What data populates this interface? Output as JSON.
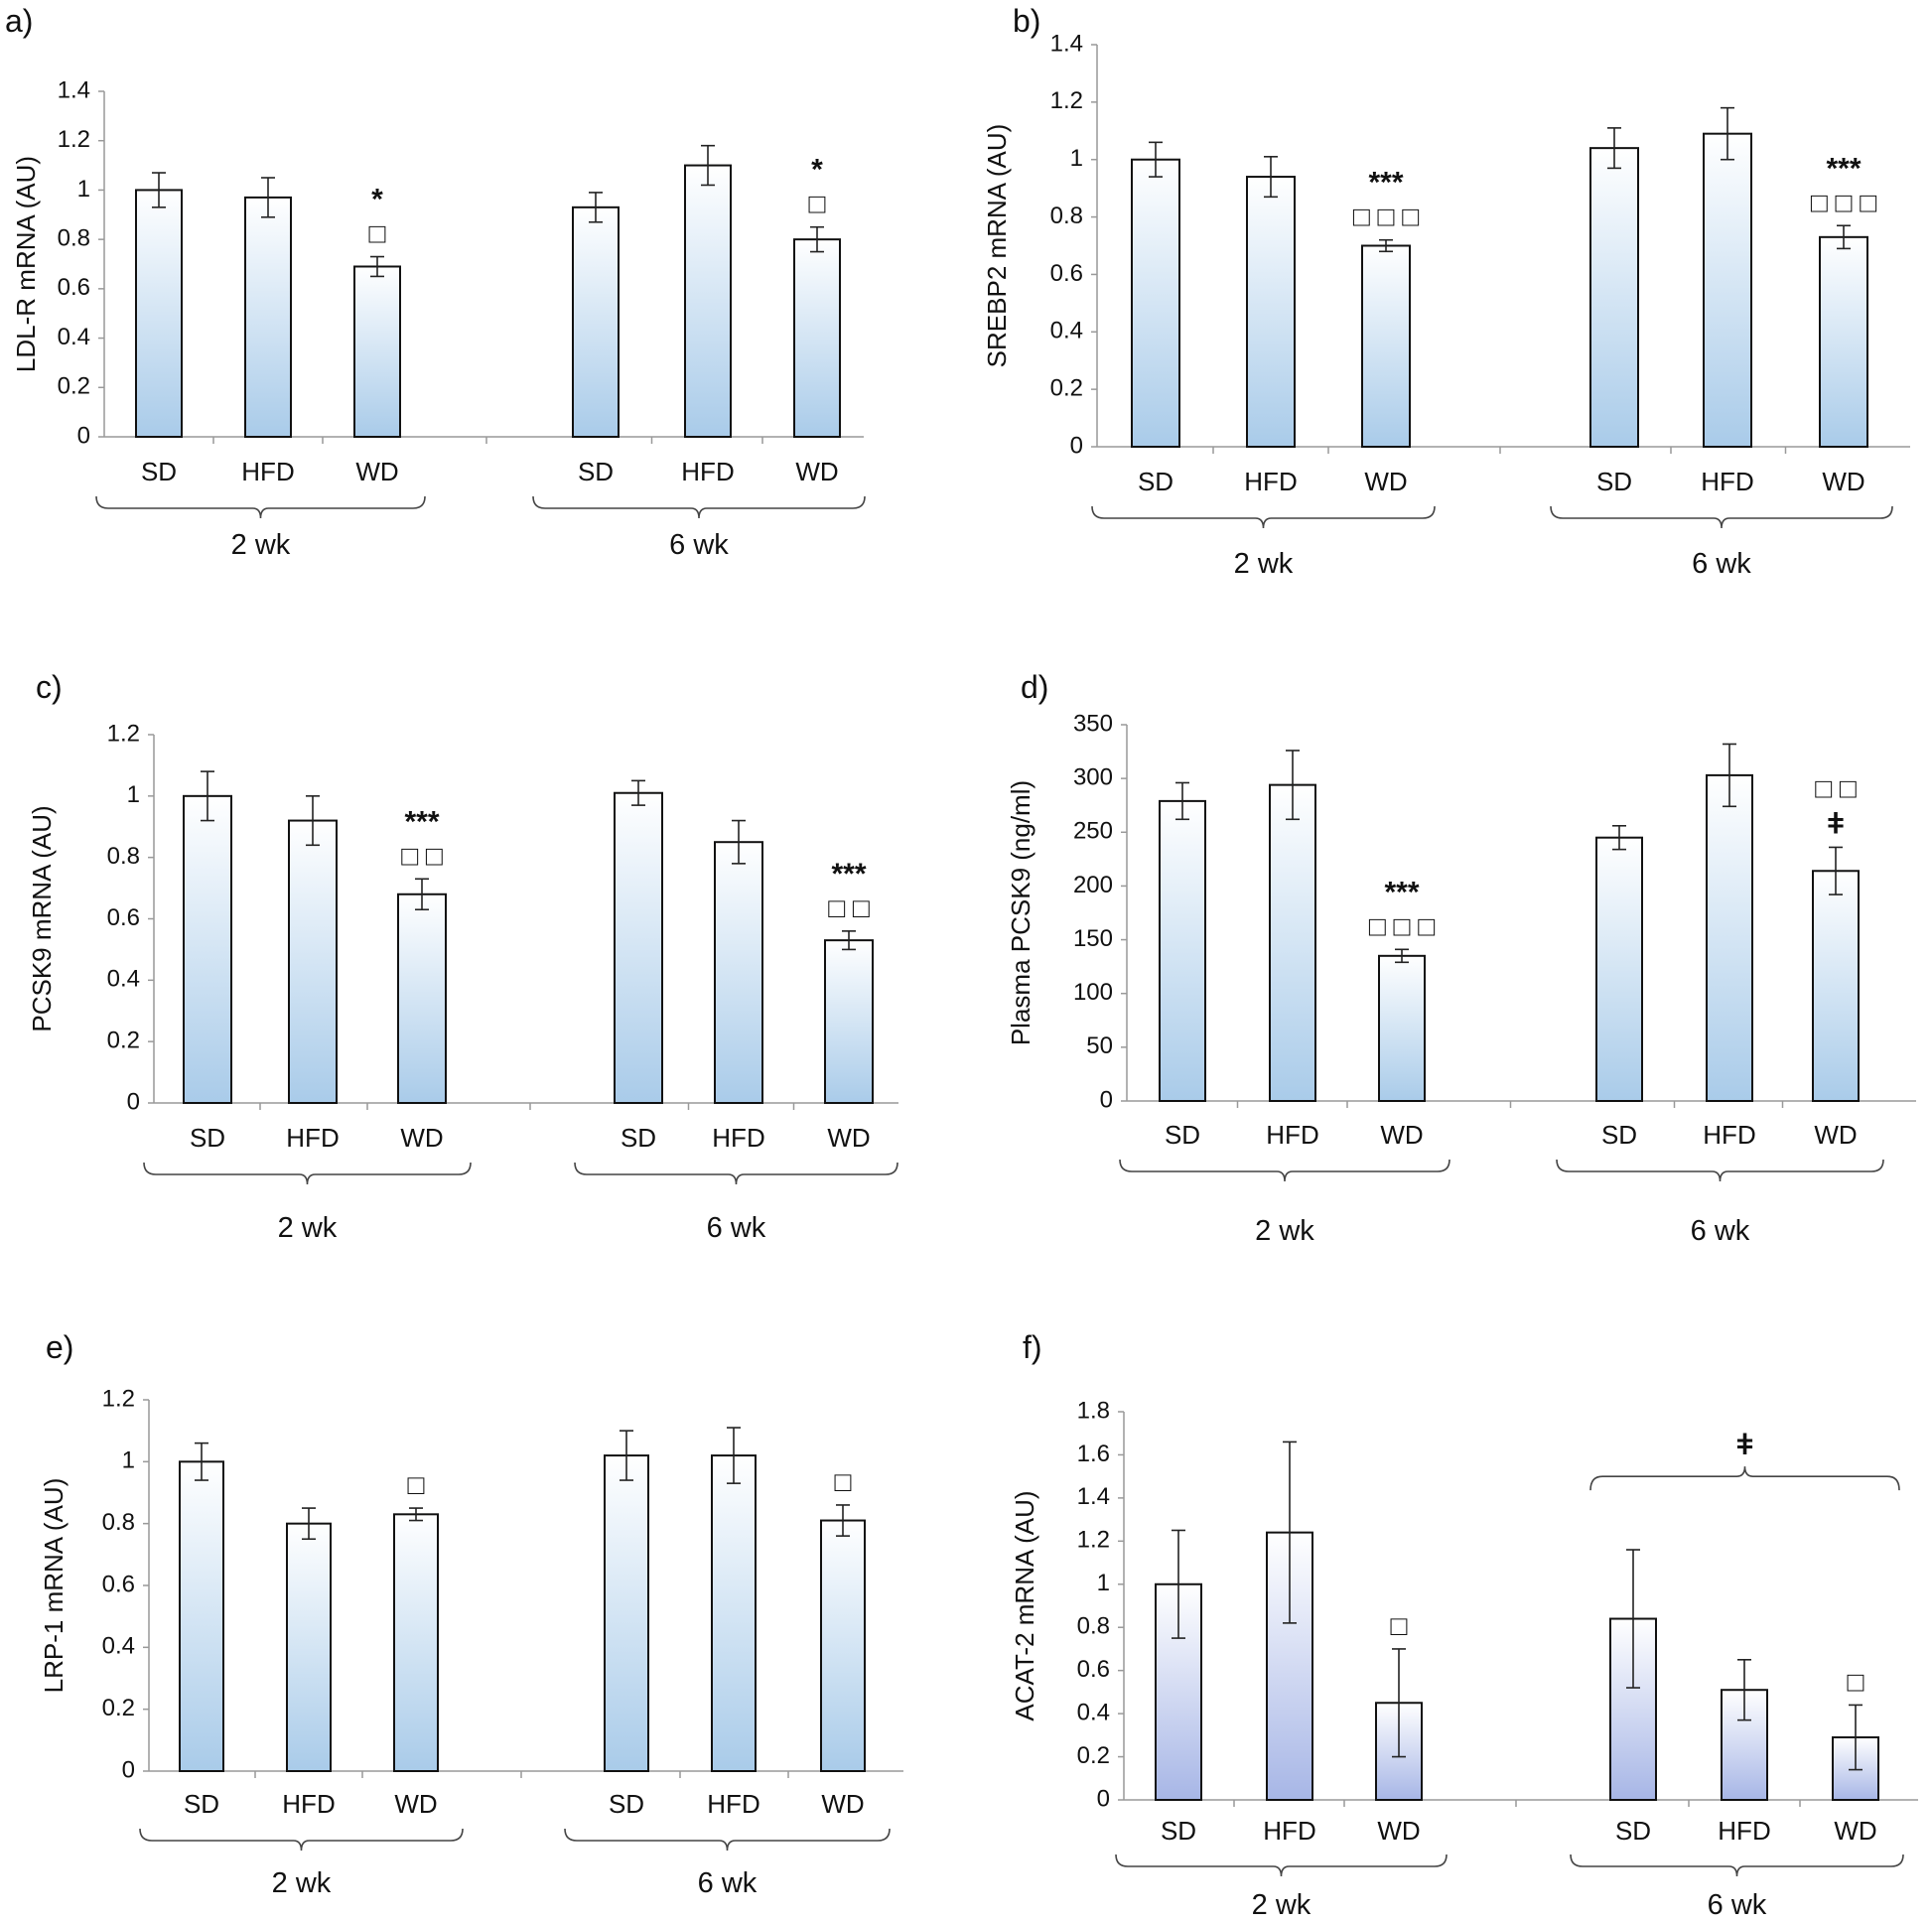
{
  "chart_data": [
    {
      "panel": "a)",
      "type": "bar",
      "ylabel": "LDL-R mRNA (AU)",
      "ylim": [
        0,
        1.4
      ],
      "yticks": [
        "0",
        "0.2",
        "0.4",
        "0.6",
        "0.8",
        "1",
        "1.2",
        "1.4"
      ],
      "categories": [
        "SD",
        "HFD",
        "WD",
        "SD",
        "HFD",
        "WD"
      ],
      "groups": [
        "2 wk",
        "6 wk"
      ],
      "values": [
        1.0,
        0.97,
        0.69,
        0.93,
        1.1,
        0.8
      ],
      "errors": [
        0.07,
        0.08,
        0.04,
        0.06,
        0.08,
        0.05
      ],
      "stars": [
        "",
        "",
        "*",
        "",
        "",
        "*"
      ],
      "squares": [
        "",
        "",
        "□",
        "",
        "",
        "□"
      ],
      "crosses": [
        "",
        "",
        "",
        "",
        "",
        ""
      ],
      "bracket": null
    },
    {
      "panel": "b)",
      "type": "bar",
      "ylabel": "SREBP2 mRNA (AU)",
      "ylim": [
        0,
        1.4
      ],
      "yticks": [
        "0",
        "0.2",
        "0.4",
        "0.6",
        "0.8",
        "1",
        "1.2",
        "1.4"
      ],
      "categories": [
        "SD",
        "HFD",
        "WD",
        "SD",
        "HFD",
        "WD"
      ],
      "groups": [
        "2 wk",
        "6 wk"
      ],
      "values": [
        1.0,
        0.94,
        0.7,
        1.04,
        1.09,
        0.73
      ],
      "errors": [
        0.06,
        0.07,
        0.02,
        0.07,
        0.09,
        0.04
      ],
      "stars": [
        "",
        "",
        "***",
        "",
        "",
        "***"
      ],
      "squares": [
        "",
        "",
        "□ □ □",
        "",
        "",
        "□ □ □"
      ],
      "crosses": [
        "",
        "",
        "",
        "",
        "",
        ""
      ],
      "bracket": null
    },
    {
      "panel": "c)",
      "type": "bar",
      "ylabel": "PCSK9 mRNA (AU)",
      "ylim": [
        0,
        1.2
      ],
      "yticks": [
        "0",
        "0.2",
        "0.4",
        "0.6",
        "0.8",
        "1",
        "1.2"
      ],
      "categories": [
        "SD",
        "HFD",
        "WD",
        "SD",
        "HFD",
        "WD"
      ],
      "groups": [
        "2 wk",
        "6 wk"
      ],
      "values": [
        1.0,
        0.92,
        0.68,
        1.01,
        0.85,
        0.53
      ],
      "errors": [
        0.08,
        0.08,
        0.05,
        0.04,
        0.07,
        0.03
      ],
      "stars": [
        "",
        "",
        "***",
        "",
        "",
        "***"
      ],
      "squares": [
        "",
        "",
        "□ □",
        "",
        "",
        "□ □"
      ],
      "crosses": [
        "",
        "",
        "",
        "",
        "",
        ""
      ],
      "bracket": null
    },
    {
      "panel": "d)",
      "type": "bar",
      "ylabel": "Plasma PCSK9 (ng/ml)",
      "ylim": [
        0,
        350
      ],
      "yticks": [
        "0",
        "50",
        "100",
        "150",
        "200",
        "250",
        "300",
        "350"
      ],
      "categories": [
        "SD",
        "HFD",
        "WD",
        "SD",
        "HFD",
        "WD"
      ],
      "groups": [
        "2 wk",
        "6 wk"
      ],
      "values": [
        279,
        294,
        135,
        245,
        303,
        214
      ],
      "errors": [
        17,
        32,
        6,
        11,
        29,
        22
      ],
      "stars": [
        "",
        "",
        "***",
        "",
        "",
        ""
      ],
      "squares": [
        "",
        "",
        "□ □ □",
        "",
        "",
        "□ □"
      ],
      "crosses": [
        "",
        "",
        "",
        "",
        "",
        "ǂ"
      ],
      "bracket": null
    },
    {
      "panel": "e)",
      "type": "bar",
      "ylabel": "LRP-1 mRNA (AU)",
      "ylim": [
        0,
        1.2
      ],
      "yticks": [
        "0",
        "0.2",
        "0.4",
        "0.6",
        "0.8",
        "1",
        "1.2"
      ],
      "categories": [
        "SD",
        "HFD",
        "WD",
        "SD",
        "HFD",
        "WD"
      ],
      "groups": [
        "2 wk",
        "6 wk"
      ],
      "values": [
        1.0,
        0.8,
        0.83,
        1.02,
        1.02,
        0.81
      ],
      "errors": [
        0.06,
        0.05,
        0.02,
        0.08,
        0.09,
        0.05
      ],
      "stars": [
        "",
        "",
        "",
        "",
        "",
        ""
      ],
      "squares": [
        "",
        "",
        "□",
        "",
        "",
        "□"
      ],
      "crosses": [
        "",
        "",
        "",
        "",
        "",
        ""
      ],
      "bracket": null
    },
    {
      "panel": "f)",
      "type": "bar",
      "ylabel": "ACAT-2 mRNA (AU)",
      "ylim": [
        0,
        1.8
      ],
      "yticks": [
        "0",
        "0.2",
        "0.4",
        "0.6",
        "0.8",
        "1",
        "1.2",
        "1.4",
        "1.6",
        "1.8"
      ],
      "categories": [
        "SD",
        "HFD",
        "WD",
        "SD",
        "HFD",
        "WD"
      ],
      "groups": [
        "2 wk",
        "6 wk"
      ],
      "values": [
        1.0,
        1.24,
        0.45,
        0.84,
        0.51,
        0.29
      ],
      "errors": [
        0.25,
        0.42,
        0.25,
        0.32,
        0.14,
        0.15
      ],
      "stars": [
        "",
        "",
        "",
        "",
        "",
        ""
      ],
      "squares": [
        "",
        "",
        "□",
        "",
        "",
        "□"
      ],
      "crosses": [
        "",
        "",
        "",
        "",
        "",
        ""
      ],
      "bracket": {
        "over": "6 wk",
        "symbol": "ǂ",
        "value": 1.5
      }
    }
  ],
  "colors": {
    "bar_top": "#ffffff",
    "bar_bottom_blue": "#a9cbe9",
    "bar_bottom_purple": "#a7b6e6",
    "ink": "#111111",
    "axis": "#999999"
  }
}
